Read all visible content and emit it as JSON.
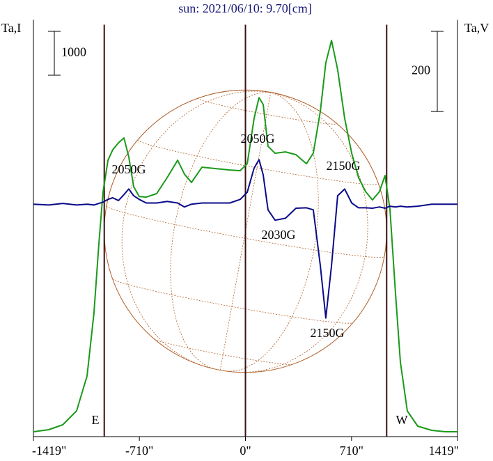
{
  "chart_data": {
    "type": "line",
    "title": "sun: 2021/06/10: 9.70[cm]",
    "ylabel": "Ta,I",
    "y2label": "Ta,V",
    "xlim": [
      -1419,
      1419
    ],
    "xticks": [
      {
        "value": -1419,
        "label": "-1419\""
      },
      {
        "value": -710,
        "label": "-710\""
      },
      {
        "value": 0,
        "label": "0\""
      },
      {
        "value": 710,
        "label": "710\""
      },
      {
        "value": 1419,
        "label": "1419\""
      }
    ],
    "ylim": [
      0,
      9500
    ],
    "y2lim": [
      -580,
      460
    ],
    "y_scale_bar": 1000,
    "y2_scale_bar": 200,
    "vlines": [
      -945,
      0,
      945
    ],
    "x": [
      -1419,
      -1316,
      -1223,
      -1130,
      -1060,
      -1014,
      -981,
      -953,
      -920,
      -888,
      -850,
      -813,
      -781,
      -748,
      -711,
      -664,
      -594,
      -524,
      -454,
      -408,
      -361,
      -291,
      -198,
      -105,
      -35,
      12,
      58,
      91,
      119,
      151,
      198,
      268,
      338,
      408,
      454,
      501,
      538,
      576,
      617,
      664,
      711,
      757,
      804,
      850,
      897,
      934,
      967,
      1004,
      1037,
      1083,
      1153,
      1247,
      1340,
      1419
    ],
    "series": [
      {
        "color": "#1a9a1a",
        "values": [
          111,
          159,
          270,
          587,
          1381,
          2809,
          4396,
          5586,
          6300,
          6538,
          6697,
          6808,
          6380,
          5697,
          5475,
          5459,
          5539,
          5904,
          6300,
          5983,
          5793,
          6142,
          6110,
          6078,
          6062,
          6221,
          7253,
          7729,
          7570,
          6618,
          6459,
          6491,
          6427,
          6221,
          6459,
          7411,
          8522,
          9030,
          8363,
          7253,
          6459,
          5904,
          5586,
          5396,
          5586,
          5951,
          5189,
          3285,
          1698,
          587,
          238,
          143,
          111,
          111
        ]
      },
      {
        "color": "#0a0a8a",
        "axis": "y2",
        "values": [
          0,
          -2,
          2,
          -2,
          0,
          -2,
          2,
          5,
          12,
          16,
          9,
          24,
          38,
          21,
          12,
          3,
          3,
          7,
          3,
          -7,
          0,
          3,
          3,
          3,
          12,
          30,
          90,
          111,
          73,
          -14,
          -40,
          -35,
          -10,
          -9,
          -14,
          -153,
          -284,
          -153,
          21,
          38,
          3,
          -9,
          -9,
          -10,
          -7,
          -10,
          -5,
          -7,
          -5,
          -7,
          -5,
          0,
          0,
          0
        ]
      }
    ],
    "annotations": [
      "2050G",
      "2050G",
      "2150G",
      "2030G",
      "2150G",
      "E",
      "W"
    ]
  }
}
